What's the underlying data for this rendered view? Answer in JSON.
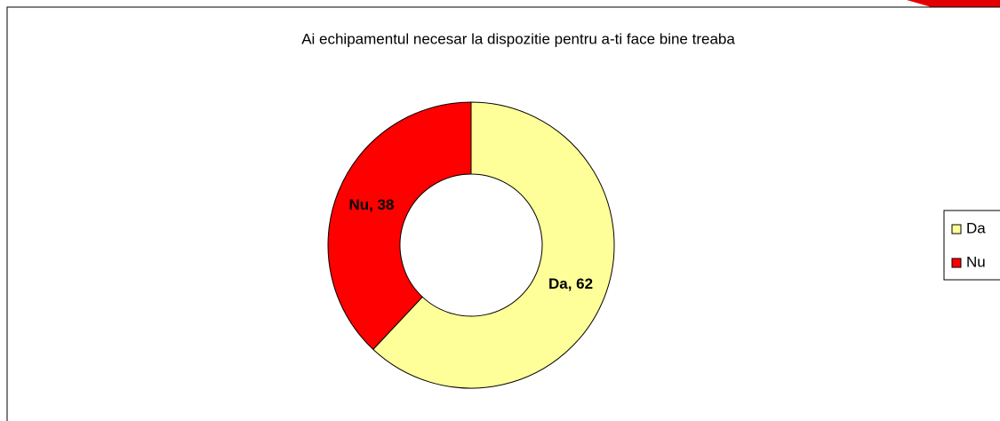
{
  "chart_data": {
    "type": "donut",
    "title": "Ai echipamentul necesar la dispozitie pentru a-ti face bine treaba",
    "categories": [
      "Da",
      "Nu"
    ],
    "values": [
      62,
      38
    ],
    "value_labels": [
      "Da, 62",
      "Nu, 38"
    ],
    "colors": [
      "#ffff99",
      "#ff0000"
    ],
    "legend": "right"
  }
}
